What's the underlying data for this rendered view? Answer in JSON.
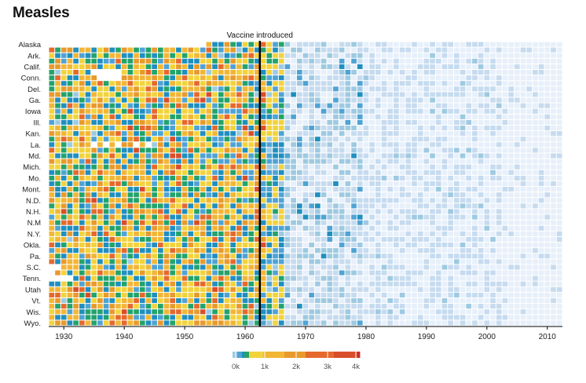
{
  "chart_data": {
    "type": "heatmap",
    "title": "Measles",
    "annotation": {
      "label": "Vaccine introduced",
      "year": 1963
    },
    "x_range": [
      1928,
      2012
    ],
    "x_ticks": [
      "1930",
      "1940",
      "1950",
      "1960",
      "1970",
      "1980",
      "1990",
      "2000",
      "2010"
    ],
    "labeled_states": [
      "Alaska",
      "Ark.",
      "Calif.",
      "Conn.",
      "Del.",
      "Ga.",
      "Iowa",
      "Ill.",
      "Kan.",
      "La.",
      "Md.",
      "Mich.",
      "Mo.",
      "Mont.",
      "N.D.",
      "N.H.",
      "N.M",
      "N.Y.",
      "Okla.",
      "Pa.",
      "S.C.",
      "Tenn.",
      "Utah",
      "Vt.",
      "Wis.",
      "Wyo."
    ],
    "rows": 51,
    "legend": {
      "ticks": [
        "0k",
        "1k",
        "2k",
        "3k",
        "4k"
      ],
      "colors": [
        "#e7f0fa",
        "#c6dbef",
        "#9ecae1",
        "#4fa3d4",
        "#1f8fbf",
        "#23a36b",
        "#f2d33c",
        "#f2b636",
        "#e89a2c",
        "#e5692c",
        "#d94e2a",
        "#c62c2a"
      ]
    },
    "grid": false
  }
}
